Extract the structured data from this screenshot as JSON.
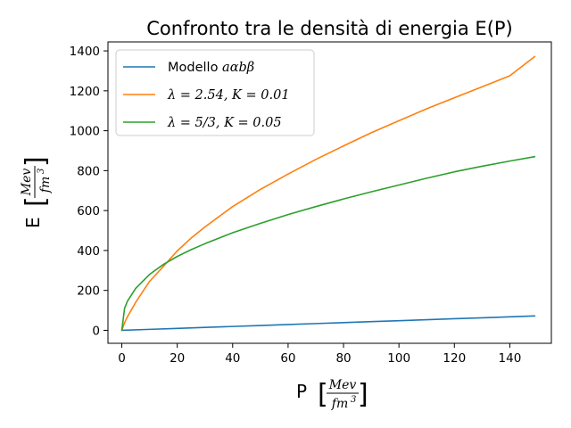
{
  "chart_data": {
    "type": "line",
    "title": "Confronto tra le densità di energia E(P)",
    "xlabel": {
      "symbol": "P",
      "numerator": "Mev",
      "denominator": "fm",
      "exponent": "3"
    },
    "ylabel": {
      "symbol": "E",
      "numerator": "Mev",
      "denominator": "fm",
      "exponent": "3"
    },
    "xlim": [
      -5,
      155
    ],
    "ylim": [
      -65,
      1445
    ],
    "xticks": [
      "0",
      "20",
      "40",
      "60",
      "80",
      "100",
      "120",
      "140"
    ],
    "yticks": [
      "0",
      "200",
      "400",
      "600",
      "800",
      "1000",
      "1200",
      "1400"
    ],
    "grid": false,
    "legend_position": "top-left",
    "series": [
      {
        "name": "Modello aαbβ",
        "legend_plain": "Modello ",
        "legend_math": "aαbβ",
        "color": "#1f77b4",
        "x": [
          0,
          10,
          20,
          30,
          40,
          50,
          60,
          70,
          80,
          90,
          100,
          110,
          120,
          130,
          140,
          149
        ],
        "values": [
          0,
          4.8,
          9.7,
          14.5,
          19.3,
          24.2,
          29,
          33.8,
          38.7,
          43.5,
          48.3,
          53.2,
          58,
          62.8,
          67.7,
          72
        ]
      },
      {
        "name": "λ = 2.54, K = 0.01",
        "legend_math": "λ = 2.54, K = 0.01",
        "color": "#ff7f0e",
        "x": [
          0,
          1,
          2,
          5,
          10,
          15,
          20,
          25,
          30,
          40,
          50,
          60,
          70,
          80,
          90,
          100,
          110,
          120,
          130,
          140,
          149
        ],
        "values": [
          0,
          38,
          67,
          140,
          245,
          320,
          398,
          462,
          518,
          620,
          706,
          783,
          856,
          924,
          990,
          1050,
          1110,
          1165,
          1220,
          1275,
          1372
        ]
      },
      {
        "name": "λ = 5/3, K = 0.05",
        "legend_math": "λ = 5/3, K = 0.05",
        "color": "#2ca02c",
        "x": [
          0,
          1,
          2,
          5,
          10,
          15,
          20,
          25,
          30,
          40,
          50,
          60,
          70,
          80,
          90,
          100,
          110,
          120,
          130,
          140,
          149
        ],
        "values": [
          0,
          110,
          145,
          210,
          280,
          330,
          370,
          404,
          434,
          489,
          536,
          580,
          620,
          658,
          694,
          728,
          762,
          794,
          822,
          848,
          870
        ]
      }
    ]
  }
}
